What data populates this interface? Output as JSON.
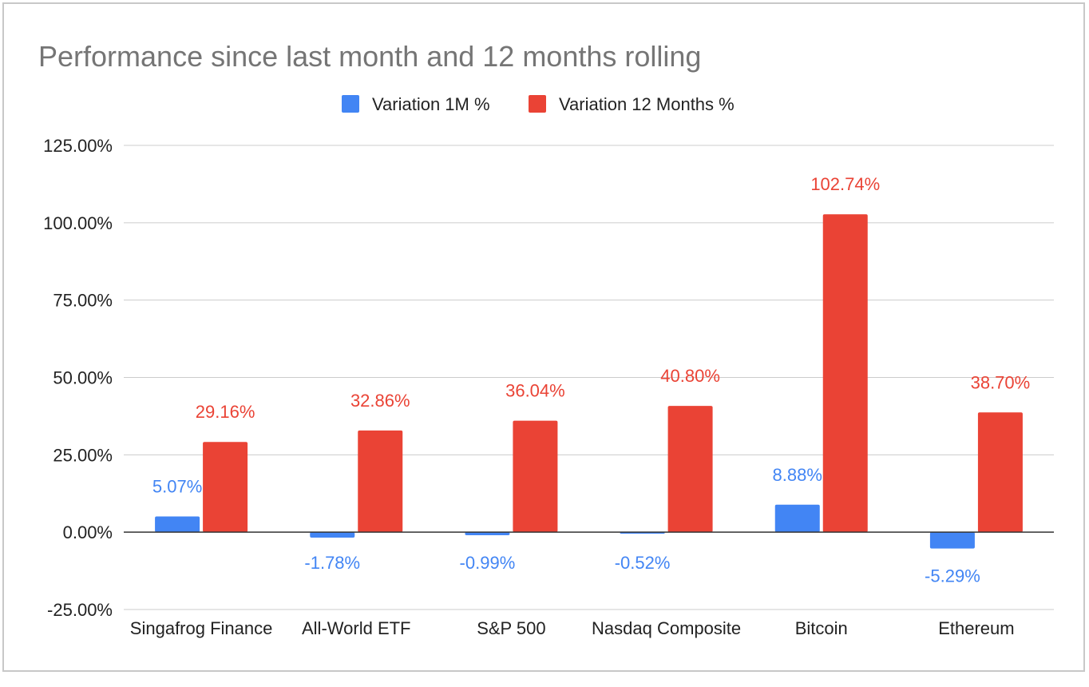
{
  "chart_data": {
    "type": "bar",
    "title": "Performance since last month and 12 months rolling",
    "categories": [
      "Singafrog Finance",
      "All-World ETF",
      "S&P 500",
      "Nasdaq Composite",
      "Bitcoin",
      "Ethereum"
    ],
    "series": [
      {
        "name": "Variation 1M %",
        "color": "#4285f4",
        "values": [
          5.07,
          -1.78,
          -0.99,
          -0.52,
          8.88,
          -5.29
        ],
        "labels": [
          "5.07%",
          "-1.78%",
          "-0.99%",
          "-0.52%",
          "8.88%",
          "-5.29%"
        ]
      },
      {
        "name": "Variation 12 Months %",
        "color": "#ea4335",
        "values": [
          29.16,
          32.86,
          36.04,
          40.8,
          102.74,
          38.7
        ],
        "labels": [
          "29.16%",
          "32.86%",
          "36.04%",
          "40.80%",
          "102.74%",
          "38.70%"
        ]
      }
    ],
    "yticks": [
      125,
      100,
      75,
      50,
      25,
      0,
      -25
    ],
    "ytick_labels": [
      "125.00%",
      "100.00%",
      "75.00%",
      "50.00%",
      "25.00%",
      "0.00%",
      "-25.00%"
    ],
    "ylim": [
      -25,
      125
    ],
    "grid": true,
    "legend_position": "top-center",
    "title_color": "#757575",
    "axis_text_color": "#222222",
    "grid_color": "#cccccc"
  }
}
